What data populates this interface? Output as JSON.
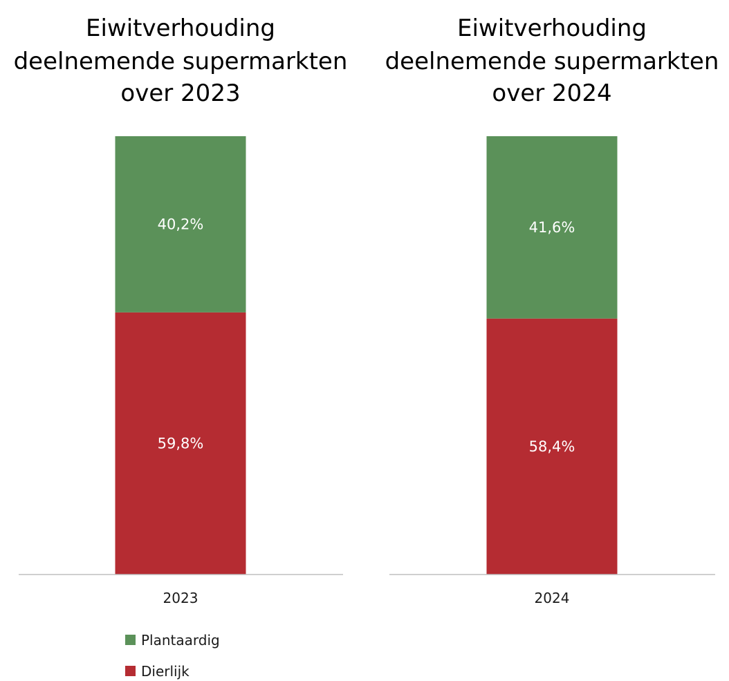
{
  "chart_data": [
    {
      "type": "bar",
      "stacked": true,
      "title": [
        "Eiwitverhouding",
        "deelnemende supermarkten",
        "over 2023"
      ],
      "categories": [
        "2023"
      ],
      "series": [
        {
          "name": "Dierlijk",
          "values": [
            59.8
          ],
          "labels": [
            "59,8%"
          ]
        },
        {
          "name": "Plantaardig",
          "values": [
            40.2
          ],
          "labels": [
            "40,2%"
          ]
        }
      ],
      "ylim": [
        0,
        100
      ]
    },
    {
      "type": "bar",
      "stacked": true,
      "title": [
        "Eiwitverhouding",
        "deelnemende supermarkten",
        "over 2024"
      ],
      "categories": [
        "2024"
      ],
      "series": [
        {
          "name": "Dierlijk",
          "values": [
            58.4
          ],
          "labels": [
            "58,4%"
          ]
        },
        {
          "name": "Plantaardig",
          "values": [
            41.6
          ],
          "labels": [
            "41,6%"
          ]
        }
      ],
      "ylim": [
        0,
        100
      ]
    }
  ],
  "legend": {
    "items": [
      {
        "name": "Plantaardig",
        "color": "#5b9159"
      },
      {
        "name": "Dierlijk",
        "color": "#b52c32"
      }
    ]
  },
  "colors": {
    "Plantaardig": "#5b9159",
    "Dierlijk": "#b52c32",
    "axis": "#bfbfbf"
  }
}
